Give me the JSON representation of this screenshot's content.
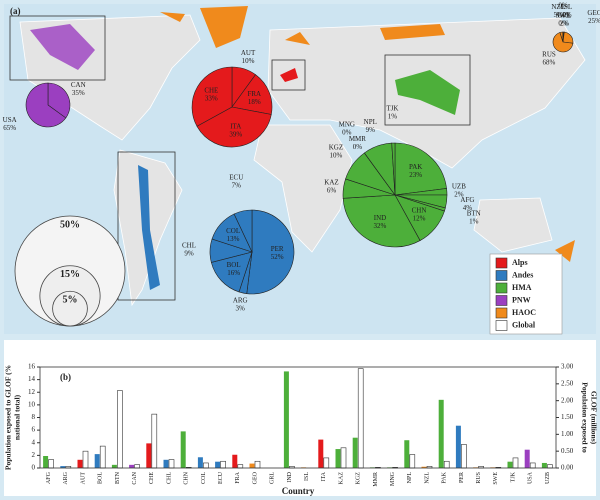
{
  "panel_a": {
    "label": "(a)",
    "legend": [
      {
        "name": "Alps",
        "color": "#e41a1c"
      },
      {
        "name": "Andes",
        "color": "#2f7bbf"
      },
      {
        "name": "HMA",
        "color": "#4daf3a"
      },
      {
        "name": "PNW",
        "color": "#9b3fc0"
      },
      {
        "name": "HAOC",
        "color": "#f08a1c"
      },
      {
        "name": "Global",
        "color": "#ffffff"
      }
    ],
    "size_legend": [
      {
        "value": 50,
        "label": "50%"
      },
      {
        "value": 15,
        "label": "15%"
      },
      {
        "value": 5,
        "label": "5%"
      }
    ]
  },
  "chart_data": [
    {
      "type": "pie",
      "color": "#9b3fc0",
      "categories": [
        "CAN",
        "USA"
      ],
      "values": [
        35,
        65
      ],
      "value_labels": [
        "35%",
        "65%"
      ]
    },
    {
      "type": "pie",
      "color": "#e41a1c",
      "categories": [
        "AUT",
        "FRA",
        "ITA",
        "CHE"
      ],
      "values": [
        10,
        18,
        39,
        33
      ],
      "value_labels": [
        "10%",
        "18%",
        "39%",
        "33%"
      ]
    },
    {
      "type": "pie",
      "color": "#2f7bbf",
      "categories": [
        "PER",
        "ARG",
        "BOL",
        "CHL",
        "COL",
        "ECU"
      ],
      "values": [
        52,
        3,
        16,
        9,
        13,
        7
      ],
      "value_labels": [
        "52%",
        "3%",
        "16%",
        "9%",
        "13%",
        "7%"
      ]
    },
    {
      "type": "pie",
      "color": "#4daf3a",
      "categories": [
        "PAK",
        "UZB",
        "AFG",
        "BTN",
        "CHN",
        "IND",
        "KAZ",
        "KGZ",
        "MNG",
        "MMR",
        "NPL",
        "TJK"
      ],
      "values": [
        23,
        2,
        4,
        1,
        12,
        32,
        6,
        10,
        0,
        0,
        9,
        1
      ],
      "value_labels": [
        "23%",
        "2%",
        "4%",
        "1%",
        "12%",
        "32%",
        "6%",
        "10%",
        "0%",
        "0%",
        "9%",
        "1%"
      ]
    },
    {
      "type": "pie",
      "color": "#f08a1c",
      "categories": [
        "GRL",
        "ISL",
        "GEO",
        "RUS",
        "NZL",
        "NOR",
        "SWE"
      ],
      "values": [
        2,
        0,
        25,
        68,
        5,
        0,
        0
      ],
      "value_labels": [
        "2%",
        "0%",
        "25%",
        "68%",
        "5%",
        "0%",
        "0%"
      ]
    },
    {
      "type": "bar",
      "label": "(b)",
      "ylabel": [
        "Population exposed to GLOF (%",
        "national total)"
      ],
      "y2label": [
        "Population exposed to",
        "GLOF (millions)"
      ],
      "xlabel": "Country",
      "categories": [
        "AFG",
        "ARG",
        "AUT",
        "BOL",
        "BTN",
        "CAN",
        "CHE",
        "CHL",
        "CHN",
        "COL",
        "ECU",
        "FRA",
        "GEO",
        "GRL",
        "IND",
        "ISL",
        "ITA",
        "KAZ",
        "KGZ",
        "MMR",
        "MNG",
        "NPL",
        "NZL",
        "PAK",
        "PER",
        "RUS",
        "SWE",
        "TJK",
        "USA",
        "UZB"
      ],
      "series": [
        {
          "values": [
            1.9,
            0.3,
            1.3,
            2.2,
            0.5,
            0.5,
            3.9,
            1.3,
            5.8,
            1.7,
            1.0,
            2.1,
            0.7,
            0,
            15.3,
            0.1,
            4.5,
            3.0,
            4.8,
            0.1,
            0.1,
            4.4,
            0.2,
            10.8,
            6.7,
            0.1,
            0.1,
            1.0,
            2.9,
            0.8
          ],
          "colors": [
            "#4daf3a",
            "#2f7bbf",
            "#e41a1c",
            "#2f7bbf",
            "#4daf3a",
            "#9b3fc0",
            "#e41a1c",
            "#2f7bbf",
            "#4daf3a",
            "#2f7bbf",
            "#2f7bbf",
            "#e41a1c",
            "#f08a1c",
            "#f08a1c",
            "#4daf3a",
            "#f08a1c",
            "#e41a1c",
            "#4daf3a",
            "#4daf3a",
            "#4daf3a",
            "#4daf3a",
            "#4daf3a",
            "#f08a1c",
            "#4daf3a",
            "#2f7bbf",
            "#f08a1c",
            "#f08a1c",
            "#4daf3a",
            "#9b3fc0",
            "#4daf3a"
          ]
        },
        {
          "values": [
            0.25,
            0.05,
            0.5,
            0.65,
            2.3,
            0.1,
            1.6,
            0.25,
            0.02,
            0.15,
            0.2,
            0.1,
            0.2,
            0,
            0.05,
            0,
            0.3,
            0.6,
            2.95,
            0.02,
            0.02,
            0.4,
            0.05,
            0.2,
            0.7,
            0.05,
            0.02,
            0.3,
            0.15,
            0.1
          ],
          "color": "#ffffff",
          "axis": "y2"
        }
      ],
      "ylim": [
        0,
        16
      ],
      "yticks": [
        0,
        2,
        4,
        6,
        8,
        10,
        12,
        14,
        16
      ],
      "y2lim": [
        0,
        3
      ],
      "y2ticks": [
        {
          "value": 0,
          "label": "0.00"
        },
        {
          "value": 0.5,
          "label": "0.50"
        },
        {
          "value": 1,
          "label": "1.00"
        },
        {
          "value": 1.5,
          "label": "1.50"
        },
        {
          "value": 2,
          "label": "2.00"
        },
        {
          "value": 2.5,
          "label": "2.50"
        },
        {
          "value": 3,
          "label": "3.00"
        }
      ]
    }
  ]
}
